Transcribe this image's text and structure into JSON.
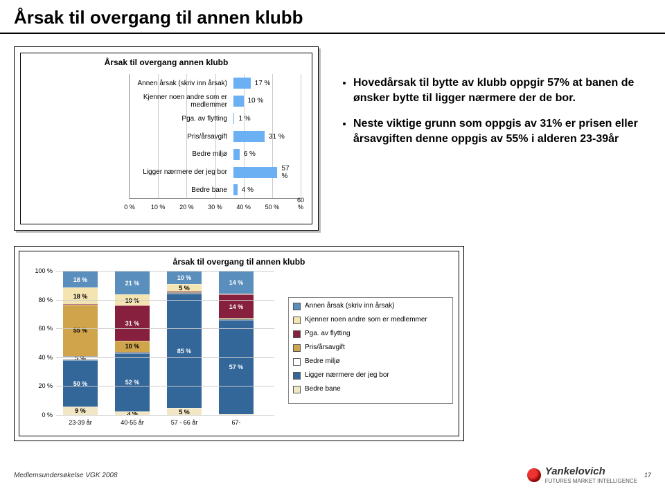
{
  "page_title": "Årsak til overgang til annen klubb",
  "chart1": {
    "type": "bar-horizontal",
    "title": "Årsak til overgang annen klubb",
    "bar_color": "#6ab0f3",
    "grid_color": "#cccccc",
    "xmax": 60,
    "xtick_step": 10,
    "categories": [
      "Annen årsak (skriv inn årsak)",
      "Kjenner noen andre som er medlemmer",
      "Pga. av flytting",
      "Pris/årsavgift",
      "Bedre miljø",
      "Ligger nærmere der jeg bor",
      "Bedre bane"
    ],
    "values": [
      17,
      10,
      1,
      31,
      6,
      57,
      4
    ],
    "xtick_labels": [
      "0 %",
      "10 %",
      "20 %",
      "30 %",
      "40 %",
      "50 %",
      "60 %"
    ]
  },
  "bullets": [
    "Hovedårsak til bytte av klubb oppgir 57% at banen de ønsker bytte til ligger nærmere der de bor.",
    "Neste viktige grunn som oppgis av 31% er prisen eller årsavgiften denne oppgis av 55% i alderen 23-39år"
  ],
  "chart2": {
    "type": "stacked-bar",
    "title": "årsak til overgang til annen klubb",
    "ymax": 100,
    "ytick_step": 20,
    "ytick_labels": [
      "0 %",
      "20 %",
      "40 %",
      "60 %",
      "80 %",
      "100 %"
    ],
    "categories": [
      "23-39 år",
      "40-55 år",
      "57 - 66 år",
      "67-"
    ],
    "series": [
      {
        "label": "Bedre bane",
        "color": "#f2e7c4"
      },
      {
        "label": "Ligger nærmere der jeg bor",
        "color": "#336699"
      },
      {
        "label": "Bedre miljø",
        "color": "#ffffff"
      },
      {
        "label": "Pris/årsavgift",
        "color": "#cfa44a"
      },
      {
        "label": "Pga. av flytting",
        "color": "#871f3e"
      },
      {
        "label": "Kjenner noen andre som er medlemmer",
        "color": "#f3e4b1"
      },
      {
        "label": "Annen årsak (skriv inn årsak)",
        "color": "#5a8fbd"
      }
    ],
    "columns": [
      {
        "cat": "23-39 år",
        "segs": [
          {
            "v": 9,
            "raw": "9 %",
            "color": "#f2e7c4",
            "dark": true
          },
          {
            "v": 50,
            "raw": "50 %",
            "color": "#336699"
          },
          {
            "v": 5,
            "raw": "5 %",
            "color": "#ffffff",
            "dark": true
          },
          {
            "v": 55,
            "raw": "55 %",
            "color": "#cfa44a",
            "dark": true
          },
          {
            "v": 0,
            "raw": "",
            "color": "#871f3e"
          },
          {
            "v": 18,
            "raw": "18 %",
            "color": "#f3e4b1",
            "dark": true
          },
          {
            "v": 18,
            "raw": "18 %",
            "color": "#5a8fbd"
          }
        ]
      },
      {
        "cat": "40-55 år",
        "segs": [
          {
            "v": 3,
            "raw": "3 %",
            "color": "#f2e7c4",
            "dark": true
          },
          {
            "v": 52,
            "raw": "52 %",
            "color": "#336699"
          },
          {
            "v": 0,
            "raw": "",
            "color": "#ffffff"
          },
          {
            "v": 10,
            "raw": "10 %",
            "color": "#cfa44a",
            "dark": true
          },
          {
            "v": 31,
            "raw": "31 %",
            "color": "#871f3e"
          },
          {
            "v": 10,
            "raw": "10 %",
            "color": "#f3e4b1",
            "dark": true
          },
          {
            "v": 21,
            "raw": "21 %",
            "color": "#5a8fbd"
          }
        ]
      },
      {
        "cat": "57 - 66 år",
        "segs": [
          {
            "v": 5,
            "raw": "5 %",
            "color": "#f2e7c4",
            "dark": true
          },
          {
            "v": 85,
            "raw": "85 %",
            "color": "#336699"
          },
          {
            "v": 0,
            "raw": "",
            "color": "#ffffff"
          },
          {
            "v": 0,
            "raw": "",
            "color": "#cfa44a"
          },
          {
            "v": 0,
            "raw": "0 %",
            "color": "#871f3e"
          },
          {
            "v": 5,
            "raw": "5 %",
            "color": "#f3e4b1",
            "dark": true
          },
          {
            "v": 10,
            "raw": "10 %",
            "color": "#5a8fbd"
          }
        ]
      },
      {
        "cat": "67-",
        "segs": [
          {
            "v": 0,
            "raw": "0 %",
            "color": "#f2e7c4",
            "dark": true
          },
          {
            "v": 57,
            "raw": "57 %",
            "color": "#336699"
          },
          {
            "v": 0,
            "raw": "",
            "color": "#ffffff"
          },
          {
            "v": 0,
            "raw": "0 %",
            "color": "#cfa44a"
          },
          {
            "v": 14,
            "raw": "14 %",
            "color": "#871f3e"
          },
          {
            "v": 0,
            "raw": "",
            "color": "#f3e4b1"
          },
          {
            "v": 14,
            "raw": "14 %",
            "color": "#5a8fbd"
          }
        ]
      }
    ],
    "scale_note": "columns are scaled independently to 100% height (as in source image)"
  },
  "footer": {
    "left": "Medlemsundersøkelse VGK 2008",
    "brand_name": "Yankelovich",
    "brand_sub": "FUTURES MARKET INTELLIGENCE",
    "page": "17"
  }
}
